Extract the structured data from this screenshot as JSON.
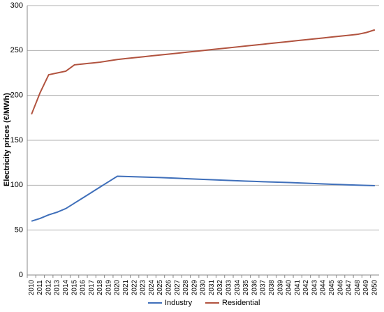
{
  "chart_data": {
    "type": "line",
    "y_label": "Electricity prices (€/MWh)",
    "categories": [
      "2010",
      "2011",
      "2012",
      "2013",
      "2014",
      "2015",
      "2016",
      "2017",
      "2018",
      "2019",
      "2020",
      "2021",
      "2022",
      "2023",
      "2024",
      "2025",
      "2026",
      "2027",
      "2028",
      "2029",
      "2030",
      "2031",
      "2032",
      "2033",
      "2034",
      "2035",
      "2036",
      "2037",
      "2038",
      "2039",
      "2040",
      "2041",
      "2042",
      "2043",
      "2044",
      "2045",
      "2046",
      "2047",
      "2048",
      "2049",
      "2050"
    ],
    "series": [
      {
        "name": "Industry",
        "color": "#3f6fba",
        "values": [
          60,
          63,
          67,
          70,
          74,
          80,
          86,
          92,
          98,
          104,
          110,
          109.7,
          109.4,
          109.1,
          108.8,
          108.5,
          108.1,
          107.7,
          107.3,
          106.9,
          106.5,
          106.1,
          105.7,
          105.3,
          104.9,
          104.5,
          104.2,
          103.9,
          103.6,
          103.3,
          103,
          102.6,
          102.2,
          101.8,
          101.4,
          101,
          100.7,
          100.4,
          100.1,
          99.8,
          99.5
        ]
      },
      {
        "name": "Residential",
        "color": "#b1533f",
        "values": [
          179,
          203,
          223,
          225,
          227,
          234,
          235,
          236,
          237,
          238.5,
          240,
          241,
          242,
          243,
          244,
          245,
          246,
          247,
          248,
          249,
          250,
          251,
          252,
          253,
          254,
          255,
          256,
          257,
          258,
          259,
          260,
          261,
          262,
          263,
          264,
          265,
          266,
          267,
          268,
          270,
          273
        ]
      }
    ],
    "ylim": [
      0,
      300
    ],
    "yticks": [
      0,
      50,
      100,
      150,
      200,
      250,
      300
    ],
    "grid": true,
    "legend": "bottom"
  }
}
